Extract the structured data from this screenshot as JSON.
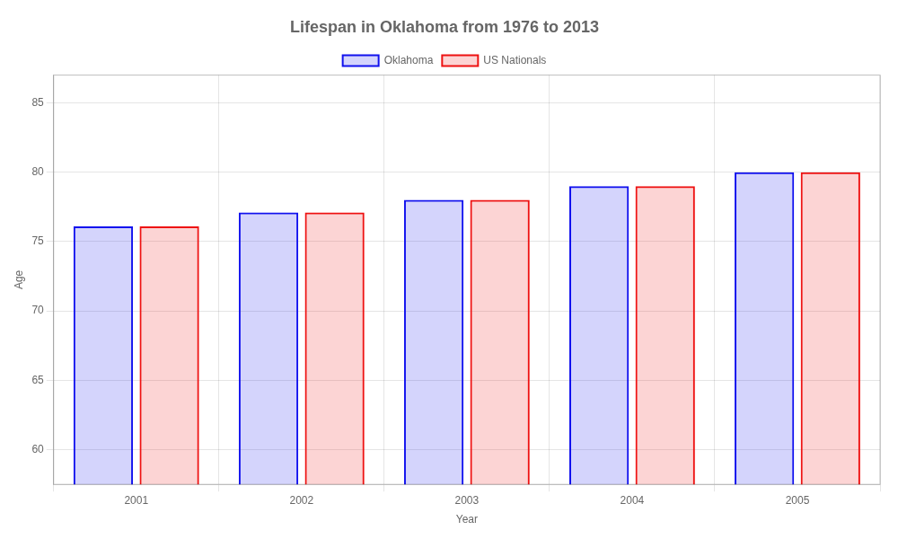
{
  "chart_data": {
    "type": "bar",
    "title": "Lifespan in Oklahoma from 1976 to 2013",
    "x_label": "Year",
    "y_label": "Age",
    "categories": [
      "2001",
      "2002",
      "2003",
      "2004",
      "2005"
    ],
    "series": [
      {
        "name": "Oklahoma",
        "color": "#1111ee",
        "values": [
          76.1,
          77.1,
          78.0,
          79.0,
          80.0
        ]
      },
      {
        "name": "US Nationals",
        "color": "#ee1111",
        "values": [
          76.1,
          77.1,
          78.0,
          79.0,
          80.0
        ]
      }
    ],
    "ylim": [
      57.5,
      87
    ],
    "yticks": [
      60,
      65,
      70,
      75,
      80,
      85
    ],
    "grid": true,
    "legend": "top"
  }
}
